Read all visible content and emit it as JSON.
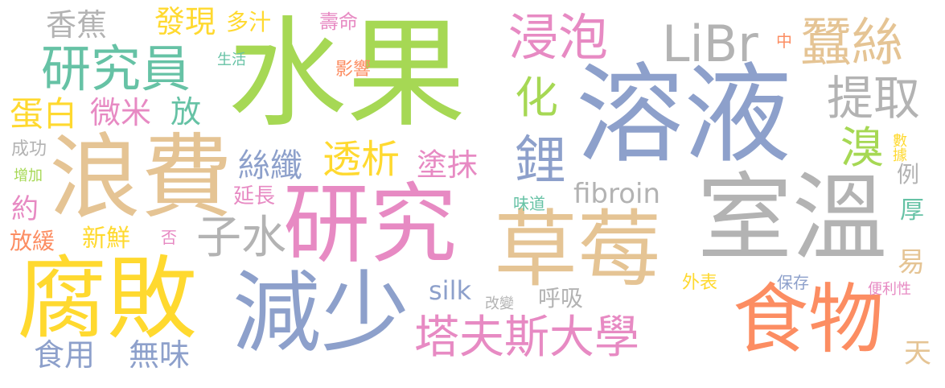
{
  "palette": {
    "green": "#a6d854",
    "blue": "#8da0cb",
    "tan": "#e5c494",
    "gray": "#b3b3b3",
    "pink": "#e78ac3",
    "yellow": "#ffd92f",
    "teal": "#66c2a5",
    "orange": "#fc8d62"
  },
  "words": {
    "shuiguo": "水果",
    "rongye": "溶液",
    "langfei": "浪費",
    "yanjiu": "研究",
    "caomei": "草莓",
    "shiwen": "室溫",
    "fubai": "腐敗",
    "jianshao": "減少",
    "shiwu": "食物",
    "tafusi": "塔夫斯大學",
    "yanjiuyuan": "研究員",
    "jinpao": "浸泡",
    "libr": "LiBr",
    "cansi": "蠶絲",
    "tiqu": "提取",
    "xiangjiao": "香蕉",
    "faxian": "發現",
    "duozhi": "多汁",
    "shouming": "壽命",
    "zhong": "中",
    "shenghuo": "生活",
    "yingxiang": "影響",
    "hua": "化",
    "li": "鋰",
    "xiu": "溴",
    "danbai": "蛋白",
    "weimi": "微米",
    "fang": "放",
    "chenggong": "成功",
    "sixian": "絲纖",
    "touxi": "透析",
    "tumo": "塗抹",
    "fibroin": "fibroin",
    "shuju": "數據",
    "li_example": "例",
    "zengjia": "增加",
    "yanchang": "延長",
    "weidao": "味道",
    "yue": "約",
    "zishui": "子水",
    "hou": "厚",
    "fanghuan": "放緩",
    "xinxian": "新鮮",
    "fou": "否",
    "yi": "易",
    "silk": "silk",
    "gaibian": "改變",
    "huxi": "呼吸",
    "waibiao": "外表",
    "baocun": "保存",
    "bianlixing": "便利性",
    "shiyong": "食用",
    "wuwei": "無味",
    "tian": "天"
  }
}
